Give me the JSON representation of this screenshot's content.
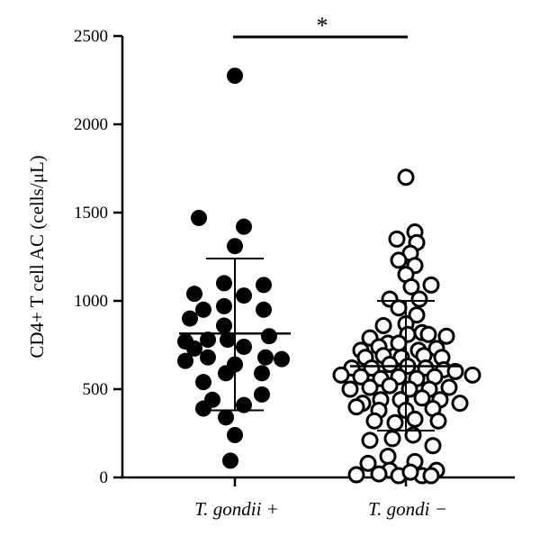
{
  "chart_data": {
    "type": "scatter",
    "title": "",
    "ylabel": "CD4+ T cell AC (cells/μL)",
    "xlabel": "",
    "ylim": [
      0,
      2500
    ],
    "y_ticks": [
      "0",
      "500",
      "1000",
      "1500",
      "2000",
      "2500"
    ],
    "y_tick_values": [
      0,
      500,
      1000,
      1500,
      2000,
      2500
    ],
    "categories": [
      "T. gondii +",
      "T. gondi −"
    ],
    "significance": "*",
    "grid": false,
    "series": [
      {
        "category": "T. gondii +",
        "marker": "filled-circle",
        "mean": 815,
        "sd_upper": 1240,
        "sd_lower": 380,
        "points": [
          {
            "dx": 0,
            "y": 2275
          },
          {
            "dx": -40,
            "y": 1470
          },
          {
            "dx": 10,
            "y": 1420
          },
          {
            "dx": 0,
            "y": 1310
          },
          {
            "dx": -12,
            "y": 1100
          },
          {
            "dx": 32,
            "y": 1090
          },
          {
            "dx": -45,
            "y": 1040
          },
          {
            "dx": 10,
            "y": 1030
          },
          {
            "dx": -35,
            "y": 950
          },
          {
            "dx": -12,
            "y": 970
          },
          {
            "dx": 32,
            "y": 950
          },
          {
            "dx": -50,
            "y": 900
          },
          {
            "dx": -12,
            "y": 860
          },
          {
            "dx": -55,
            "y": 770
          },
          {
            "dx": -30,
            "y": 780
          },
          {
            "dx": -8,
            "y": 780
          },
          {
            "dx": 38,
            "y": 800
          },
          {
            "dx": -45,
            "y": 730
          },
          {
            "dx": 10,
            "y": 740
          },
          {
            "dx": -55,
            "y": 660
          },
          {
            "dx": -30,
            "y": 680
          },
          {
            "dx": 0,
            "y": 640
          },
          {
            "dx": 34,
            "y": 680
          },
          {
            "dx": 52,
            "y": 670
          },
          {
            "dx": -10,
            "y": 590
          },
          {
            "dx": 30,
            "y": 590
          },
          {
            "dx": -35,
            "y": 540
          },
          {
            "dx": 30,
            "y": 470
          },
          {
            "dx": -25,
            "y": 440
          },
          {
            "dx": 10,
            "y": 410
          },
          {
            "dx": -35,
            "y": 390
          },
          {
            "dx": -10,
            "y": 340
          },
          {
            "dx": 0,
            "y": 240
          },
          {
            "dx": -5,
            "y": 95
          }
        ]
      },
      {
        "category": "T. gondi −",
        "marker": "open-circle",
        "mean": 630,
        "sd_upper": 1000,
        "sd_lower": 265,
        "points": [
          {
            "dx": 0,
            "y": 1700
          },
          {
            "dx": 10,
            "y": 1390
          },
          {
            "dx": -10,
            "y": 1350
          },
          {
            "dx": 12,
            "y": 1330
          },
          {
            "dx": 5,
            "y": 1270
          },
          {
            "dx": -8,
            "y": 1230
          },
          {
            "dx": 10,
            "y": 1200
          },
          {
            "dx": 0,
            "y": 1150
          },
          {
            "dx": 28,
            "y": 1090
          },
          {
            "dx": 6,
            "y": 1080
          },
          {
            "dx": -18,
            "y": 1010
          },
          {
            "dx": 15,
            "y": 1010
          },
          {
            "dx": -8,
            "y": 960
          },
          {
            "dx": 12,
            "y": 920
          },
          {
            "dx": -25,
            "y": 860
          },
          {
            "dx": 0,
            "y": 870
          },
          {
            "dx": 18,
            "y": 820
          },
          {
            "dx": -40,
            "y": 790
          },
          {
            "dx": -20,
            "y": 760
          },
          {
            "dx": 2,
            "y": 810
          },
          {
            "dx": 25,
            "y": 810
          },
          {
            "dx": 45,
            "y": 800
          },
          {
            "dx": -50,
            "y": 720
          },
          {
            "dx": -30,
            "y": 740
          },
          {
            "dx": -8,
            "y": 760
          },
          {
            "dx": 14,
            "y": 720
          },
          {
            "dx": 34,
            "y": 730
          },
          {
            "dx": -45,
            "y": 680
          },
          {
            "dx": -25,
            "y": 690
          },
          {
            "dx": -5,
            "y": 680
          },
          {
            "dx": 20,
            "y": 690
          },
          {
            "dx": 40,
            "y": 680
          },
          {
            "dx": -60,
            "y": 620
          },
          {
            "dx": -38,
            "y": 620
          },
          {
            "dx": -18,
            "y": 640
          },
          {
            "dx": 2,
            "y": 630
          },
          {
            "dx": 22,
            "y": 620
          },
          {
            "dx": 42,
            "y": 610
          },
          {
            "dx": -72,
            "y": 580
          },
          {
            "dx": -50,
            "y": 570
          },
          {
            "dx": -28,
            "y": 560
          },
          {
            "dx": -8,
            "y": 570
          },
          {
            "dx": 12,
            "y": 560
          },
          {
            "dx": 32,
            "y": 570
          },
          {
            "dx": 55,
            "y": 600
          },
          {
            "dx": -62,
            "y": 500
          },
          {
            "dx": -40,
            "y": 510
          },
          {
            "dx": -18,
            "y": 520
          },
          {
            "dx": 4,
            "y": 500
          },
          {
            "dx": 26,
            "y": 500
          },
          {
            "dx": 48,
            "y": 510
          },
          {
            "dx": 74,
            "y": 580
          },
          {
            "dx": -48,
            "y": 420
          },
          {
            "dx": -28,
            "y": 440
          },
          {
            "dx": -6,
            "y": 440
          },
          {
            "dx": 18,
            "y": 450
          },
          {
            "dx": 38,
            "y": 440
          },
          {
            "dx": 60,
            "y": 420
          },
          {
            "dx": -55,
            "y": 400
          },
          {
            "dx": -30,
            "y": 380
          },
          {
            "dx": 0,
            "y": 380
          },
          {
            "dx": 30,
            "y": 390
          },
          {
            "dx": -35,
            "y": 320
          },
          {
            "dx": -12,
            "y": 310
          },
          {
            "dx": 10,
            "y": 330
          },
          {
            "dx": 36,
            "y": 320
          },
          {
            "dx": -40,
            "y": 210
          },
          {
            "dx": -15,
            "y": 220
          },
          {
            "dx": 8,
            "y": 240
          },
          {
            "dx": 30,
            "y": 180
          },
          {
            "dx": -20,
            "y": 120
          },
          {
            "dx": -42,
            "y": 80
          },
          {
            "dx": 10,
            "y": 90
          },
          {
            "dx": 34,
            "y": 40
          },
          {
            "dx": -18,
            "y": 40
          },
          {
            "dx": -8,
            "y": 10
          },
          {
            "dx": 18,
            "y": 10
          },
          {
            "dx": -55,
            "y": 15
          },
          {
            "dx": -30,
            "y": 20
          },
          {
            "dx": 5,
            "y": 30
          },
          {
            "dx": 28,
            "y": 10
          }
        ]
      }
    ]
  }
}
